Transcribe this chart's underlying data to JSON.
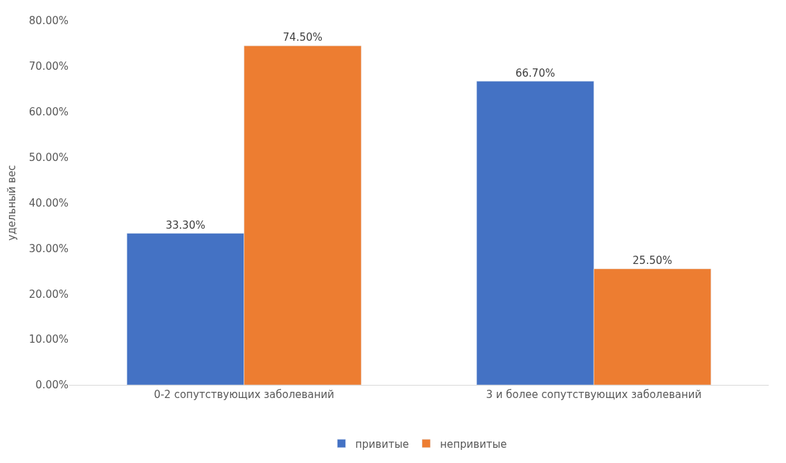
{
  "chart_data": {
    "type": "bar",
    "ylabel": "удельный вес",
    "categories": [
      "0-2 сопутствующих заболеваний",
      "3 и более сопутствующих заболеваний"
    ],
    "series": [
      {
        "name": "привитые",
        "color": "#4472c4",
        "values": [
          33.3,
          66.7
        ],
        "value_labels": [
          "33.30%",
          "66.70%"
        ]
      },
      {
        "name": "непривитые",
        "color": "#ed7d31",
        "values": [
          74.5,
          25.5
        ],
        "value_labels": [
          "74.50%",
          "25.50%"
        ]
      }
    ],
    "ylim": [
      0,
      80
    ],
    "yticks": [
      {
        "value": 0,
        "label": "0.00%"
      },
      {
        "value": 10,
        "label": "10.00%"
      },
      {
        "value": 20,
        "label": "20.00%"
      },
      {
        "value": 30,
        "label": "30.00%"
      },
      {
        "value": 40,
        "label": "40.00%"
      },
      {
        "value": 50,
        "label": "50.00%"
      },
      {
        "value": 60,
        "label": "60.00%"
      },
      {
        "value": 70,
        "label": "70.00%"
      },
      {
        "value": 80,
        "label": "80.00%"
      }
    ],
    "grid": false,
    "legend": "bottom"
  }
}
